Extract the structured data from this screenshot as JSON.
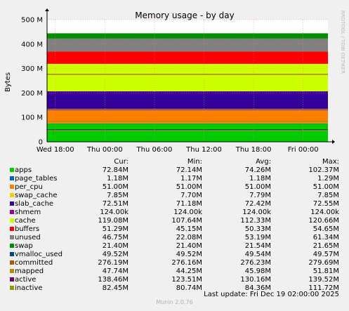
{
  "chart_data": {
    "type": "area",
    "title": "Memory usage - by day",
    "ylabel": "Bytes",
    "side_label": "RRDTOOL / TOBI OETIKER",
    "ylim": [
      0,
      500
    ],
    "yticks": [
      0,
      100,
      200,
      300,
      400,
      500
    ],
    "ytick_labels": [
      "0",
      "100 M",
      "200 M",
      "300 M",
      "400 M",
      "500 M"
    ],
    "xticks": [
      0,
      6,
      12,
      18,
      24,
      30
    ],
    "xtick_labels": [
      "Wed 18:00",
      "Thu 00:00",
      "Thu 06:00",
      "Thu 12:00",
      "Thu 18:00",
      "Fri 00:00"
    ],
    "xlim": [
      -1,
      33
    ],
    "legend_headers": [
      "Cur:",
      "Min:",
      "Avg:",
      "Max:"
    ],
    "series": [
      {
        "name": "apps",
        "color": "#00cc00",
        "kind": "area",
        "avg": 74.26,
        "cur": "72.84M",
        "min": "72.14M",
        "avg_label": "74.26M",
        "max": "102.37M"
      },
      {
        "name": "page_tables",
        "color": "#0066b3",
        "kind": "area",
        "avg": 1.18,
        "cur": "1.18M",
        "min": "1.17M",
        "avg_label": "1.18M",
        "max": "1.29M"
      },
      {
        "name": "per_cpu",
        "color": "#ff8000",
        "kind": "area",
        "avg": 51.0,
        "cur": "51.00M",
        "min": "51.00M",
        "avg_label": "51.00M",
        "max": "51.00M"
      },
      {
        "name": "swap_cache",
        "color": "#ffcc00",
        "kind": "area",
        "avg": 7.79,
        "cur": "7.85M",
        "min": "7.70M",
        "avg_label": "7.79M",
        "max": "7.85M"
      },
      {
        "name": "slab_cache",
        "color": "#330099",
        "kind": "area",
        "avg": 72.42,
        "cur": "72.51M",
        "min": "71.18M",
        "avg_label": "72.42M",
        "max": "72.55M"
      },
      {
        "name": "shmem",
        "color": "#990099",
        "kind": "area",
        "avg": 0.12,
        "cur": "124.00k",
        "min": "124.00k",
        "avg_label": "124.00k",
        "max": "124.00k"
      },
      {
        "name": "cache",
        "color": "#ccff00",
        "kind": "area",
        "avg": 112.33,
        "cur": "119.08M",
        "min": "107.64M",
        "avg_label": "112.33M",
        "max": "120.66M"
      },
      {
        "name": "buffers",
        "color": "#ff0000",
        "kind": "area",
        "avg": 50.33,
        "cur": "51.29M",
        "min": "45.15M",
        "avg_label": "50.33M",
        "max": "54.65M"
      },
      {
        "name": "unused",
        "color": "#808080",
        "kind": "area",
        "avg": 53.19,
        "cur": "46.75M",
        "min": "22.08M",
        "avg_label": "53.19M",
        "max": "61.34M"
      },
      {
        "name": "swap",
        "color": "#008f00",
        "kind": "area",
        "avg": 21.54,
        "cur": "21.40M",
        "min": "21.40M",
        "avg_label": "21.54M",
        "max": "21.65M"
      },
      {
        "name": "vmalloc_used",
        "color": "#00487d",
        "kind": "line",
        "avg": 49.54,
        "cur": "49.52M",
        "min": "49.52M",
        "avg_label": "49.54M",
        "max": "49.57M"
      },
      {
        "name": "committed",
        "color": "#b35a00",
        "kind": "line",
        "avg": 276.23,
        "cur": "276.19M",
        "min": "276.16M",
        "avg_label": "276.23M",
        "max": "279.69M"
      },
      {
        "name": "mapped",
        "color": "#b38f00",
        "kind": "line",
        "avg": 45.98,
        "cur": "47.74M",
        "min": "44.25M",
        "avg_label": "45.98M",
        "max": "51.81M"
      },
      {
        "name": "active",
        "color": "#6b006b",
        "kind": "line",
        "avg": 130.16,
        "cur": "138.46M",
        "min": "123.51M",
        "avg_label": "130.16M",
        "max": "139.52M"
      },
      {
        "name": "inactive",
        "color": "#8f9c00",
        "kind": "line",
        "avg": 84.36,
        "cur": "82.45M",
        "min": "80.74M",
        "avg_label": "84.36M",
        "max": "111.72M"
      }
    ]
  },
  "footer": {
    "last_update": "Last update: Fri Dec 19 02:00:00 2025",
    "munin": "Munin 2.0.76"
  }
}
